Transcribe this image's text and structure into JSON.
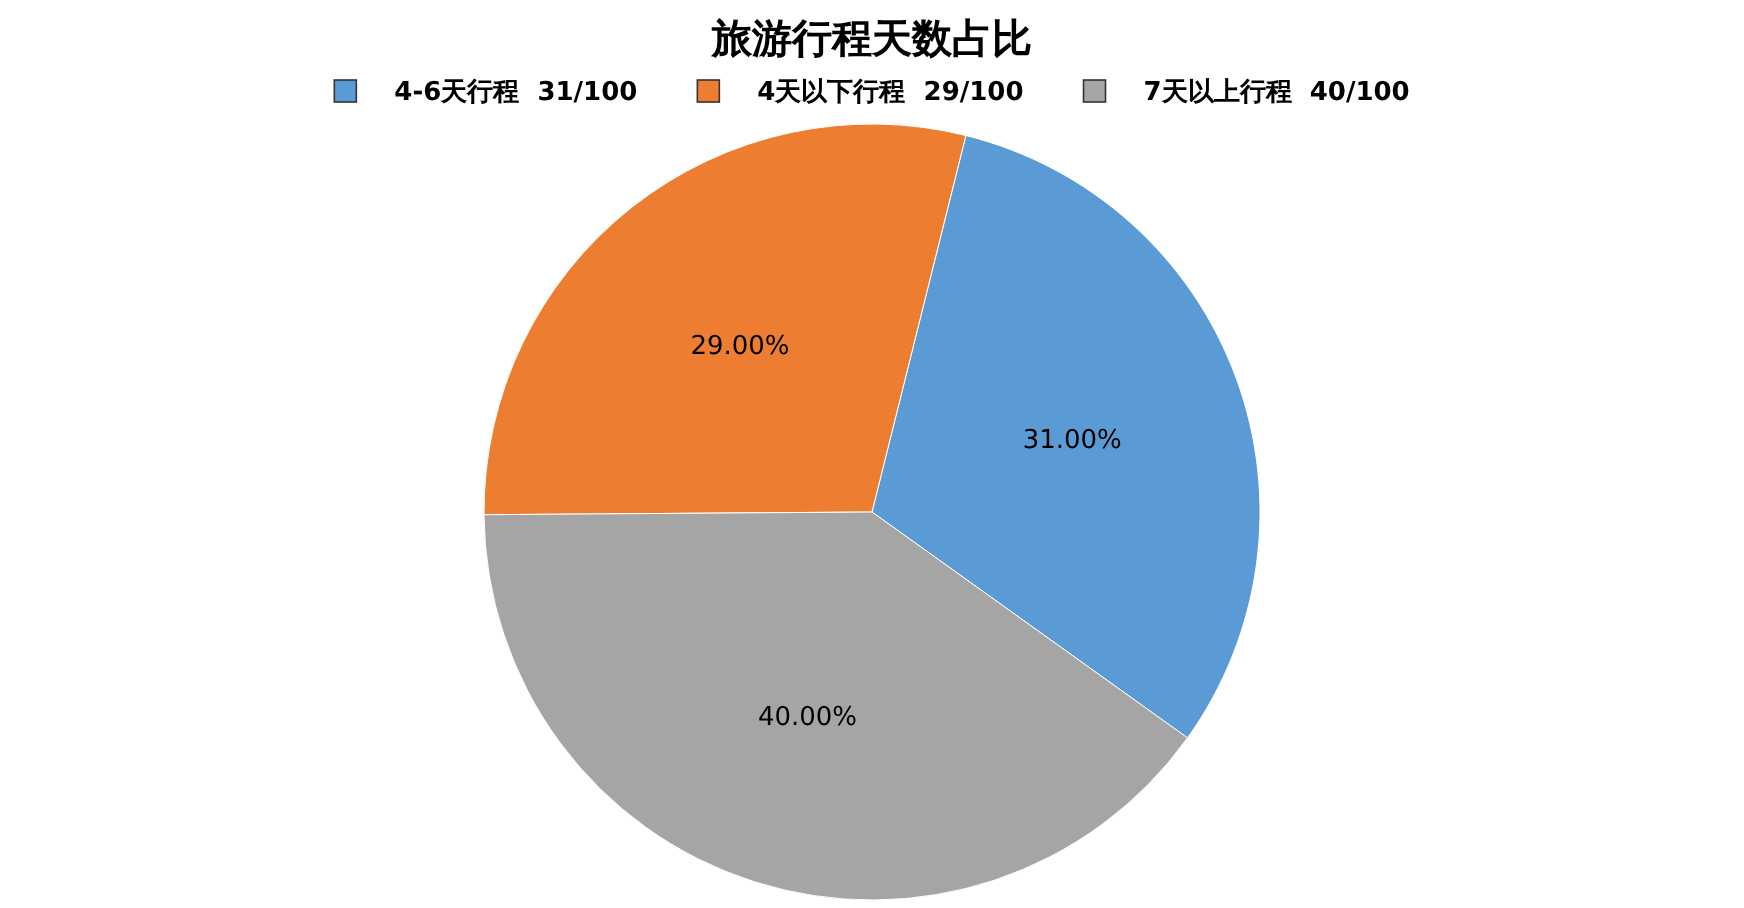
{
  "chart_data": {
    "type": "pie",
    "title": "旅游行程天数占比",
    "categories": [
      "4-6天行程  31/100",
      "4天以下行程  29/100",
      "7天以上行程  40/100"
    ],
    "values": [
      31,
      29,
      40
    ],
    "colors": [
      "#5b9bd5",
      "#ed7d31",
      "#a5a5a5"
    ],
    "value_labels": [
      "31.00%",
      "29.00%",
      "40.00%"
    ],
    "legend": "top"
  }
}
